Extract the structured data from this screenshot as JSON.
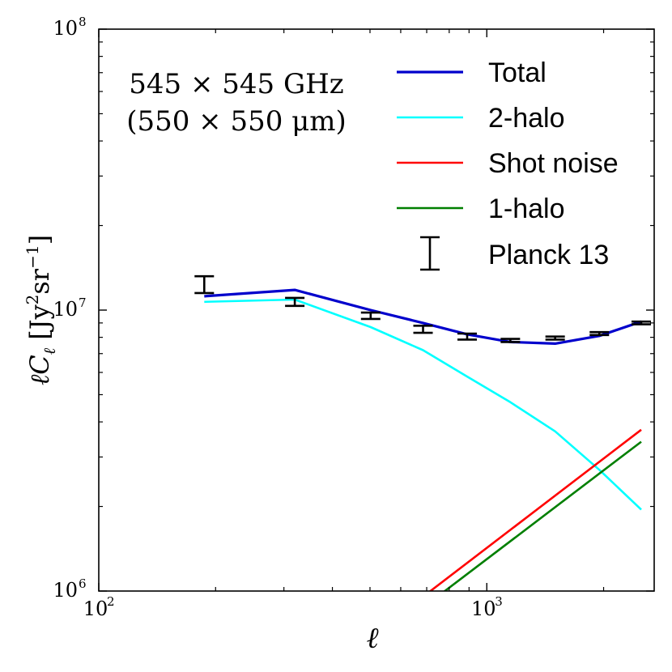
{
  "chart_data": {
    "type": "line",
    "xscale": "log",
    "yscale": "log",
    "xlim": [
      100,
      2700
    ],
    "ylim": [
      1000000,
      100000000
    ],
    "xlabel": "ℓ",
    "ylabel": {
      "main": "ℓC",
      "sub": "ℓ",
      "units_open": " [Jy",
      "units_sup1": "2",
      "units_mid": "sr",
      "units_sup2": "−1",
      "units_close": "]"
    },
    "annotation": {
      "line1": "545 × 545 GHz",
      "line2": "(550 × 550 μm)"
    },
    "x_ticks": [
      {
        "value": 100,
        "base": "10",
        "exp": "2"
      },
      {
        "value": 1000,
        "base": "10",
        "exp": "3"
      }
    ],
    "y_ticks": [
      {
        "value": 1000000,
        "base": "10",
        "exp": "6"
      },
      {
        "value": 10000000,
        "base": "10",
        "exp": "7"
      },
      {
        "value": 100000000,
        "base": "10",
        "exp": "8"
      }
    ],
    "series": [
      {
        "name": "Total",
        "color": "#0000cc",
        "width": 3.2,
        "x": [
          187,
          320,
          502,
          685,
          890,
          1150,
          1500,
          1950,
          2500
        ],
        "y": [
          11200000,
          11800000,
          10000000,
          9000000,
          8200000,
          7700000,
          7600000,
          8100000,
          9100000
        ]
      },
      {
        "name": "2-halo",
        "color": "#00ffff",
        "width": 2.6,
        "x": [
          187,
          320,
          502,
          685,
          890,
          1150,
          1500,
          1950,
          2500
        ],
        "y": [
          10700000,
          10900000,
          8700000,
          7200000,
          5800000,
          4700000,
          3700000,
          2700000,
          1950000
        ]
      },
      {
        "name": "Shot noise",
        "color": "#ff0000",
        "width": 2.6,
        "x": [
          675,
          2500
        ],
        "y": [
          940000,
          3750000
        ]
      },
      {
        "name": "1-halo",
        "color": "#007f00",
        "width": 2.6,
        "x": [
          735,
          2500
        ],
        "y": [
          940000,
          3400000
        ]
      }
    ],
    "errorbars": {
      "name": "Planck 13",
      "color": "#000000",
      "points": [
        {
          "x": 187,
          "y": 12300000,
          "lo": 11500000,
          "hi": 13200000
        },
        {
          "x": 320,
          "y": 10700000,
          "lo": 10350000,
          "hi": 11050000
        },
        {
          "x": 502,
          "y": 9550000,
          "lo": 9300000,
          "hi": 9800000
        },
        {
          "x": 685,
          "y": 8550000,
          "lo": 8300000,
          "hi": 8800000
        },
        {
          "x": 890,
          "y": 8050000,
          "lo": 7850000,
          "hi": 8250000
        },
        {
          "x": 1150,
          "y": 7800000,
          "lo": 7700000,
          "hi": 7900000
        },
        {
          "x": 1500,
          "y": 7950000,
          "lo": 7850000,
          "hi": 8050000
        },
        {
          "x": 1950,
          "y": 8250000,
          "lo": 8150000,
          "hi": 8350000
        },
        {
          "x": 2500,
          "y": 9000000,
          "lo": 8900000,
          "hi": 9100000
        }
      ]
    },
    "legend": {
      "position": "top-right",
      "entries": [
        {
          "label": "Total",
          "color": "#0000cc",
          "kind": "line"
        },
        {
          "label": "2-halo",
          "color": "#00ffff",
          "kind": "line"
        },
        {
          "label": "Shot noise",
          "color": "#ff0000",
          "kind": "line"
        },
        {
          "label": "1-halo",
          "color": "#007f00",
          "kind": "line"
        },
        {
          "label": "Planck 13",
          "color": "#000000",
          "kind": "errorbar"
        }
      ]
    }
  }
}
